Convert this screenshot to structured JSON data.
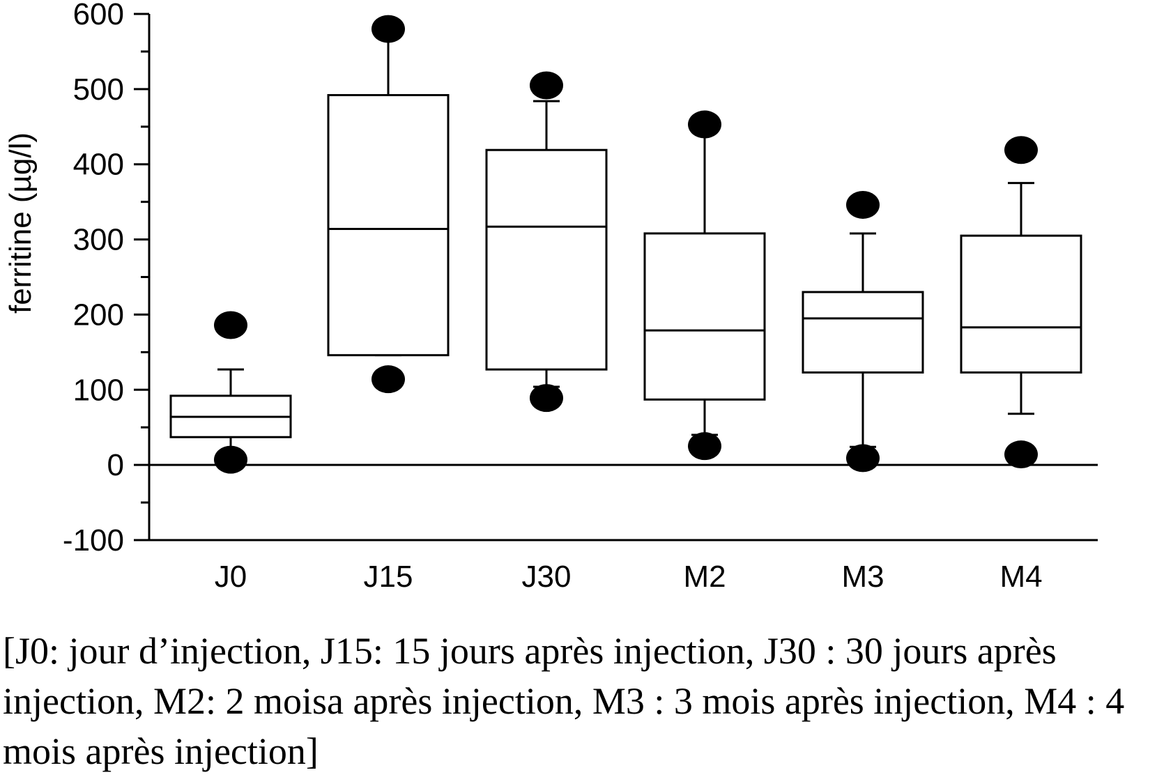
{
  "chart_data": {
    "type": "box",
    "ylabel": "ferritine (µg/l)",
    "xlabel": "",
    "ylim": [
      -100,
      600
    ],
    "y_ticks": [
      "600",
      "500",
      "400",
      "300",
      "200",
      "100",
      "0",
      "-100"
    ],
    "y_tick_values": [
      600,
      500,
      400,
      300,
      200,
      100,
      0,
      -100
    ],
    "categories": [
      "J0",
      "J15",
      "J30",
      "M2",
      "M3",
      "M4"
    ],
    "boxes": [
      {
        "label": "J0",
        "whisker_low": 13,
        "q1": 37,
        "median": 64,
        "q3": 92,
        "whisker_high": 127,
        "outliers": [
          7,
          186
        ]
      },
      {
        "label": "J15",
        "whisker_low": 146,
        "q1": 146,
        "median": 314,
        "q3": 492,
        "whisker_high": 580,
        "outliers": [
          114,
          580
        ]
      },
      {
        "label": "J30",
        "whisker_low": 104,
        "q1": 127,
        "median": 317,
        "q3": 419,
        "whisker_high": 484,
        "outliers": [
          89,
          505
        ]
      },
      {
        "label": "M2",
        "whisker_low": 40,
        "q1": 87,
        "median": 179,
        "q3": 308,
        "whisker_high": 445,
        "outliers": [
          25,
          453
        ]
      },
      {
        "label": "M3",
        "whisker_low": 24,
        "q1": 123,
        "median": 195,
        "q3": 230,
        "whisker_high": 308,
        "outliers": [
          9,
          346
        ]
      },
      {
        "label": "M4",
        "whisker_low": 68,
        "q1": 123,
        "median": 183,
        "q3": 305,
        "whisker_high": 375,
        "outliers": [
          14,
          419
        ]
      }
    ],
    "reference_line": 0,
    "grid": false,
    "legend": "none",
    "colors": {
      "stroke": "#000000",
      "fill": "#ffffff",
      "outlier": "#000000"
    }
  },
  "caption": "[J0: jour d’injection, J15: 15 jours après injection, J30 : 30 jours après injection, M2: 2 moisa après injection, M3 : 3 mois après injection, M4 : 4 mois après injection]"
}
